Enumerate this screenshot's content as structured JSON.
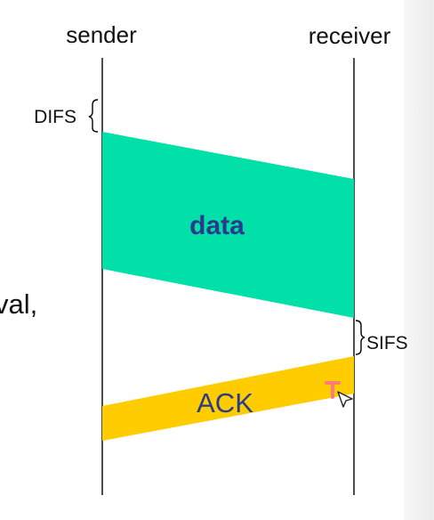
{
  "labels": {
    "sender": "sender",
    "receiver": "receiver",
    "difs": "DIFS",
    "sifs": "SIFS",
    "data": "data",
    "ack": "ACK",
    "left_fragment": "val,"
  },
  "colors": {
    "data_frame": "#00e0a8",
    "ack_frame": "#ffcc00",
    "frame_text": "#2b3a8a",
    "timeline": "#000000"
  },
  "cursor": {
    "icon": "text-cursor-icon"
  }
}
